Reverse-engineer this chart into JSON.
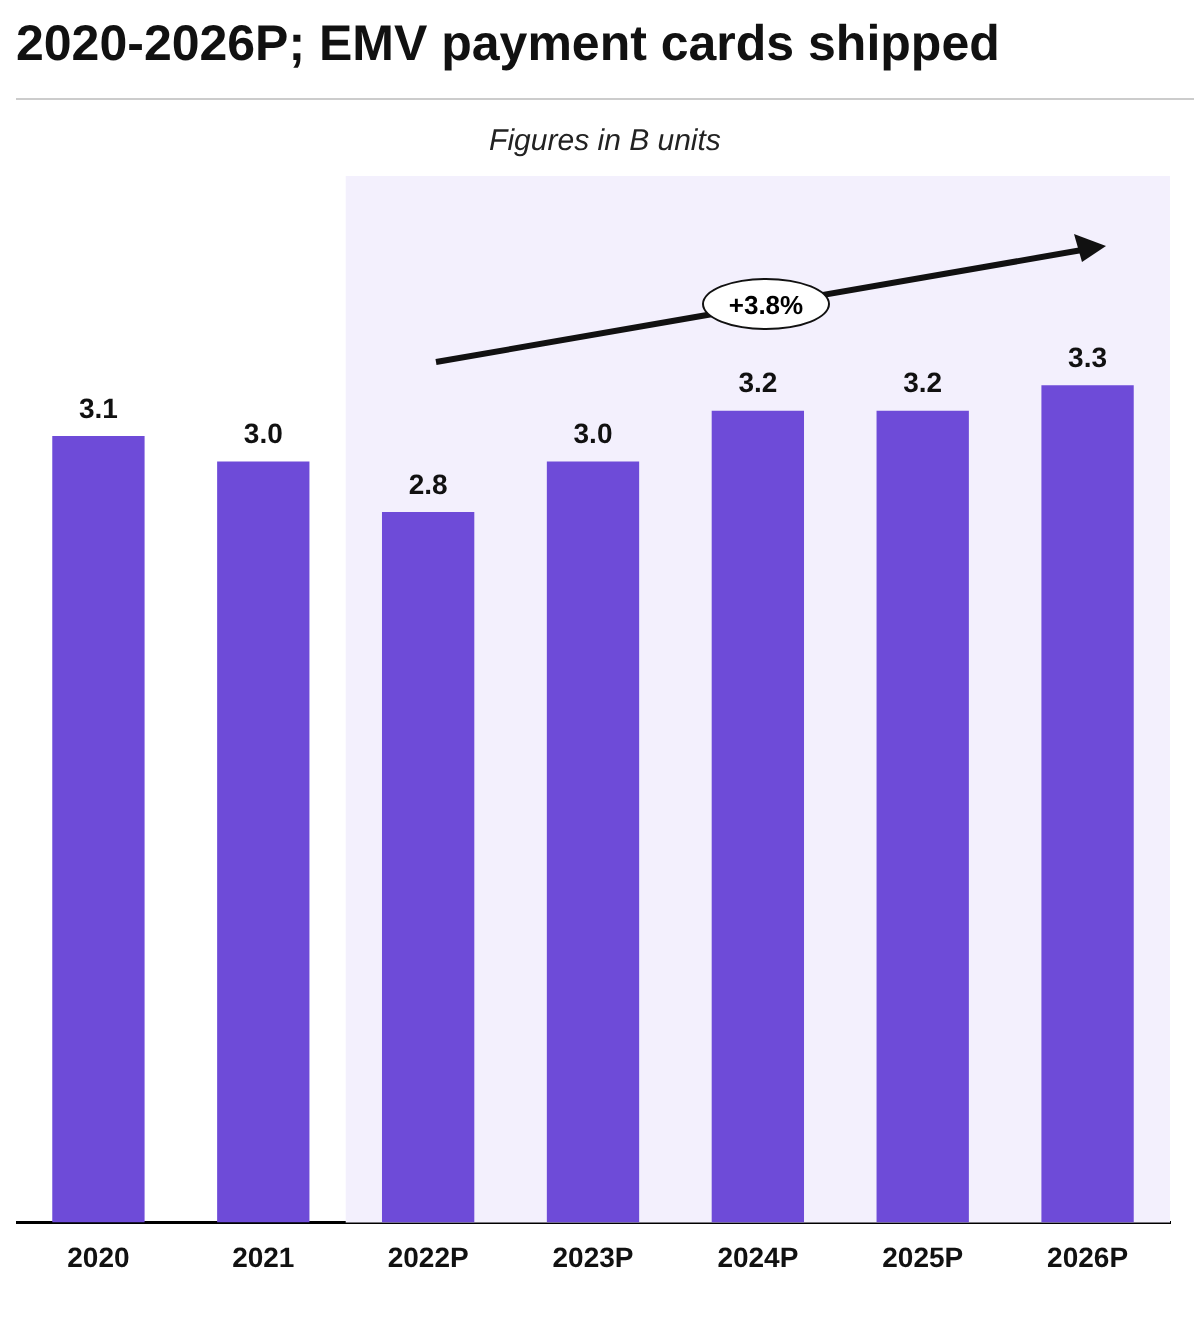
{
  "chart_data": {
    "type": "bar",
    "title": "2020-2026P; EMV payment cards shipped",
    "subtitle": "Figures in B units",
    "categories": [
      "2020",
      "2021",
      "2022P",
      "2023P",
      "2024P",
      "2025P",
      "2026P"
    ],
    "values": [
      3.1,
      3.0,
      2.8,
      3.0,
      3.2,
      3.2,
      3.3
    ],
    "value_labels": [
      "3.1",
      "3.0",
      "2.8",
      "3.0",
      "3.2",
      "3.2",
      "3.3"
    ],
    "color": "#6e4bd8",
    "bands": [
      {
        "axis": "x",
        "from": "2022P",
        "to": "2026P",
        "color": "#f3f0fd"
      }
    ],
    "annotations": [
      "+3.8%"
    ],
    "grid": false,
    "legend": false
  }
}
